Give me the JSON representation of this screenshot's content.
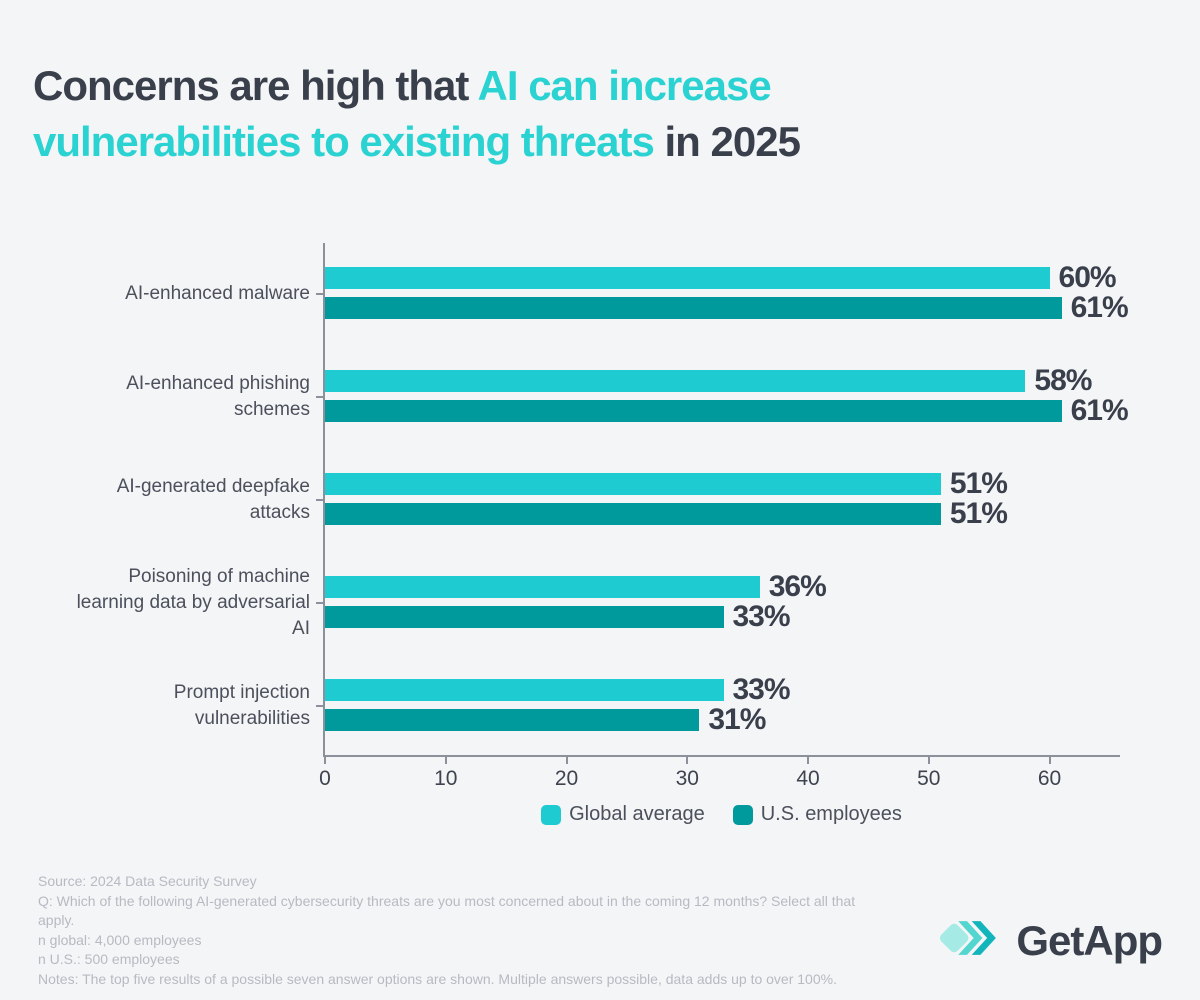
{
  "title": {
    "line1_dark": "Concerns are high that",
    "line1_accent": "AI can increase",
    "line2_accent": "vulnerabilities to existing threats",
    "line2_dark": "in 2025"
  },
  "chart_data": {
    "type": "bar",
    "orientation": "horizontal",
    "categories": [
      "AI-enhanced malware",
      "AI-enhanced phishing schemes",
      "AI-generated deepfake attacks",
      "Poisoning of machine learning data by adversarial AI",
      "Prompt injection vulnerabilities"
    ],
    "series": [
      {
        "name": "Global average",
        "color": "#1dcbd1",
        "values": [
          60,
          58,
          51,
          36,
          33
        ]
      },
      {
        "name": "U.S. employees",
        "color": "#00999c",
        "values": [
          61,
          61,
          51,
          33,
          31
        ]
      }
    ],
    "value_suffix": "%",
    "xlim": [
      0,
      66
    ],
    "x_ticks": [
      0,
      10,
      20,
      30,
      40,
      50,
      60
    ],
    "grid": false,
    "legend_position": "bottom-center"
  },
  "footer": {
    "lines": [
      "Source: 2024 Data Security Survey",
      "Q: Which of the following AI-generated cybersecurity threats are you most concerned about in the coming 12 months? Select all that apply.",
      "n global: 4,000 employees",
      "n U.S.: 500 employees",
      "Notes: The top five results of a possible seven answer options are shown. Multiple answers possible, data adds up to over 100%."
    ]
  },
  "logo": {
    "text": "GetApp",
    "mark_colors": {
      "light": "#9de8e3",
      "mid": "#45d2cc",
      "dark": "#12b5bb"
    }
  },
  "colors": {
    "background": "#f4f5f6",
    "title_dark": "#3a3f4c",
    "accent_teal": "#2bd2d2",
    "bar_light": "#1dcbd1",
    "bar_dark": "#00999c",
    "axis": "#8b909a",
    "category_text": "#4b505c",
    "value_text": "#3a3f4c",
    "footer_text": "#b6bac2"
  }
}
